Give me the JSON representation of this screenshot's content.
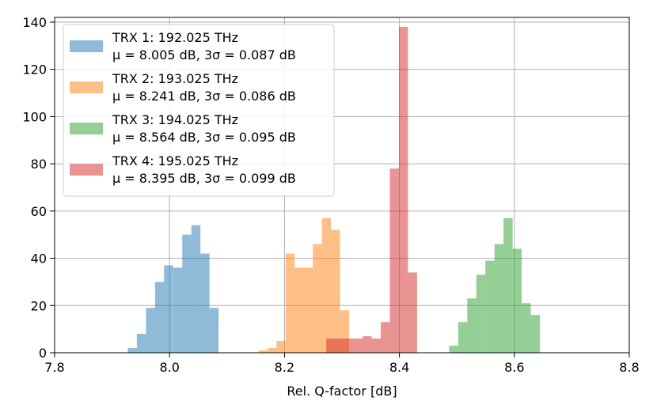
{
  "chart_data": {
    "type": "bar",
    "title": "",
    "xlabel": "Rel. Q-factor [dB]",
    "ylabel": "",
    "xlim": [
      7.8,
      8.8
    ],
    "ylim": [
      0,
      142
    ],
    "xticks": [
      7.8,
      8.0,
      8.2,
      8.4,
      8.6,
      8.8
    ],
    "xtick_labels": [
      "7.8",
      "8.0",
      "8.2",
      "8.4",
      "8.6",
      "8.8"
    ],
    "yticks": [
      0,
      20,
      40,
      60,
      80,
      100,
      120,
      140
    ],
    "ytick_labels": [
      "0",
      "20",
      "40",
      "60",
      "80",
      "100",
      "120",
      "140"
    ],
    "grid": true,
    "legend_position": "top-left",
    "bin_width": 0.0158,
    "series": [
      {
        "name": "TRX 1: 192.025 THz",
        "stats": "μ = 8.005 dB, 3σ = 0.087 dB",
        "color": "#1f77b4",
        "bins_start": 7.9273,
        "values": [
          2,
          8,
          19,
          30,
          37,
          36,
          50,
          54,
          42,
          19
        ]
      },
      {
        "name": "TRX 2: 193.025 THz",
        "stats": "μ = 8.241 dB, 3σ = 0.086 dB",
        "color": "#ff7f0e",
        "bins_start": 8.1545,
        "values": [
          1,
          2,
          5,
          42,
          36,
          36,
          46,
          57,
          52,
          18
        ]
      },
      {
        "name": "TRX 3: 194.025 THz",
        "stats": "μ = 8.564 dB, 3σ = 0.095 dB",
        "color": "#2ca02c",
        "bins_start": 8.4864,
        "values": [
          3,
          13,
          23,
          33,
          39,
          46,
          57,
          44,
          21,
          16
        ]
      },
      {
        "name": "TRX 4: 195.025 THz",
        "stats": "μ = 8.395 dB, 3σ = 0.099 dB",
        "color": "#d62728",
        "bins_start": 8.2727,
        "values": [
          6,
          6,
          6,
          6,
          7,
          6,
          13,
          78,
          138,
          34
        ]
      }
    ]
  }
}
